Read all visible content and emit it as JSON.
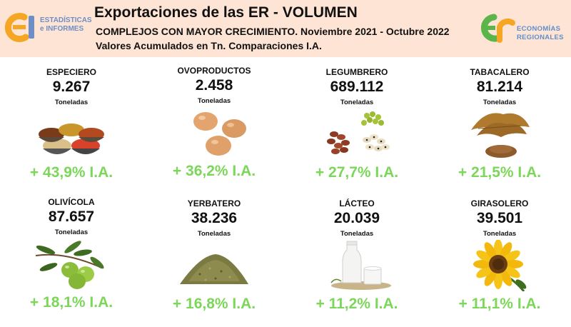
{
  "header": {
    "title": "Exportaciones de las ER - VOLUMEN",
    "subtitle1": "COMPLEJOS CON MAYOR CRECIMIENTO. Noviembre 2021 - Octubre 2022",
    "subtitle2": "Valores Acumulados en Tn. Comparaciones I.A.",
    "logo_left": {
      "line1": "ESTADÍSTICAS",
      "line2": "e INFORMES"
    },
    "logo_right": {
      "line1": "ECONOMÍAS",
      "line2": "REGIONALES"
    }
  },
  "colors": {
    "header_bg": "#fde4d4",
    "growth_green": "#7cd65a",
    "logo_orange": "#f5a623",
    "logo_blue": "#6f8fc4",
    "logo_green": "#5bb54a"
  },
  "complejos": [
    {
      "name": "ESPECIERO",
      "value": "9.267",
      "unit": "Toneladas",
      "growth": "+ 43,9% I.A.",
      "icon": "spices-icon"
    },
    {
      "name": "OVOPRODUCTOS",
      "value": "2.458",
      "unit": "Toneladas",
      "growth": "+ 36,2% I.A.",
      "icon": "eggs-icon"
    },
    {
      "name": "LEGUMBRERO",
      "value": "689.112",
      "unit": "Toneladas",
      "growth": "+ 27,7% I.A.",
      "icon": "legumes-icon"
    },
    {
      "name": "TABACALERO",
      "value": "81.214",
      "unit": "Toneladas",
      "growth": "+ 21,5% I.A.",
      "icon": "tobacco-icon"
    },
    {
      "name": "OLIVÍCOLA",
      "value": "87.657",
      "unit": "Toneladas",
      "growth": "+ 18,1% I.A.",
      "icon": "olives-icon"
    },
    {
      "name": "YERBATERO",
      "value": "38.236",
      "unit": "Toneladas",
      "growth": "+ 16,8% I.A.",
      "icon": "yerba-icon"
    },
    {
      "name": "LÁCTEO",
      "value": "20.039",
      "unit": "Toneladas",
      "growth": "+ 11,2% I.A.",
      "icon": "milk-icon"
    },
    {
      "name": "GIRASOLERO",
      "value": "39.501",
      "unit": "Toneladas",
      "growth": "+ 11,1% I.A.",
      "icon": "sunflower-icon"
    }
  ]
}
